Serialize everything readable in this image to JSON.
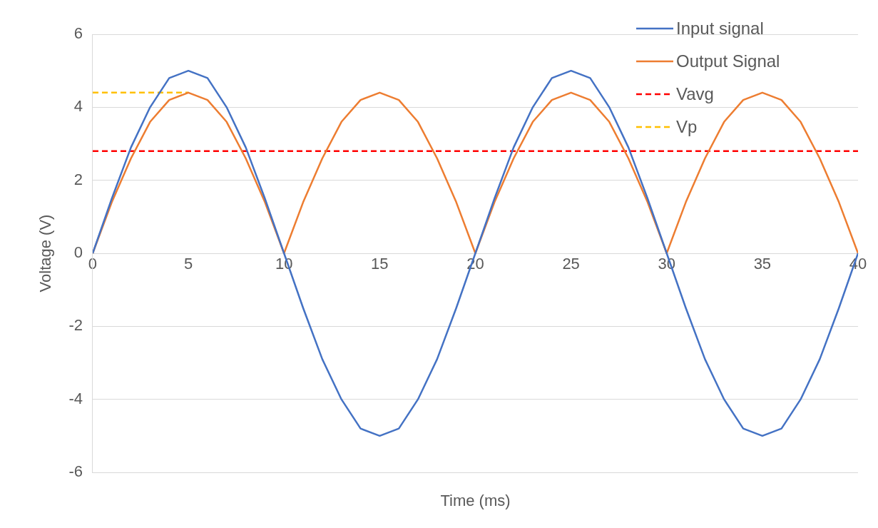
{
  "chart_data": {
    "type": "line",
    "xlabel": "Time (ms)",
    "ylabel": "Voltage (V)",
    "x": [
      0,
      1,
      2,
      3,
      4,
      5,
      6,
      7,
      8,
      9,
      10,
      11,
      12,
      13,
      14,
      15,
      16,
      17,
      18,
      19,
      20,
      21,
      22,
      23,
      24,
      25,
      26,
      27,
      28,
      29,
      30,
      31,
      32,
      33,
      34,
      35,
      36,
      37,
      38,
      39,
      40
    ],
    "series": [
      {
        "name": "Input signal",
        "color": "#4472c4",
        "values": [
          0,
          1.5,
          2.9,
          4.0,
          4.8,
          5,
          4.8,
          4.0,
          2.9,
          1.5,
          0,
          -1.5,
          -2.9,
          -4.0,
          -4.8,
          -5,
          -4.8,
          -4.0,
          -2.9,
          -1.5,
          0,
          1.5,
          2.9,
          4.0,
          4.8,
          5,
          4.8,
          4.0,
          2.9,
          1.5,
          0,
          -1.5,
          -2.9,
          -4.0,
          -4.8,
          -5,
          -4.8,
          -4.0,
          -2.9,
          -1.5,
          0
        ]
      },
      {
        "name": "Output Signal",
        "color": "#ed7d31",
        "values": [
          0,
          1.4,
          2.6,
          3.6,
          4.2,
          4.4,
          4.2,
          3.6,
          2.6,
          1.4,
          0,
          1.4,
          2.6,
          3.6,
          4.2,
          4.4,
          4.2,
          3.6,
          2.6,
          1.4,
          0,
          1.4,
          2.6,
          3.6,
          4.2,
          4.4,
          4.2,
          3.6,
          2.6,
          1.4,
          0,
          1.4,
          2.6,
          3.6,
          4.2,
          4.4,
          4.2,
          3.6,
          2.6,
          1.4,
          0
        ]
      },
      {
        "name": "Vavg",
        "color": "#ff0000",
        "line_style": "dashed",
        "x": [
          0,
          40
        ],
        "values": [
          2.8,
          2.8
        ]
      },
      {
        "name": "Vp",
        "color": "#ffc000",
        "line_style": "dashed",
        "x": [
          0,
          5
        ],
        "values": [
          4.4,
          4.4
        ]
      }
    ],
    "xlim": [
      0,
      40
    ],
    "xticks": [
      0,
      5,
      10,
      15,
      20,
      25,
      30,
      35,
      40
    ],
    "ylim": [
      -6,
      6
    ],
    "yticks": [
      -6,
      -4,
      -2,
      0,
      2,
      4,
      6
    ],
    "grid": "y",
    "legend": "top right",
    "marker": "none"
  }
}
